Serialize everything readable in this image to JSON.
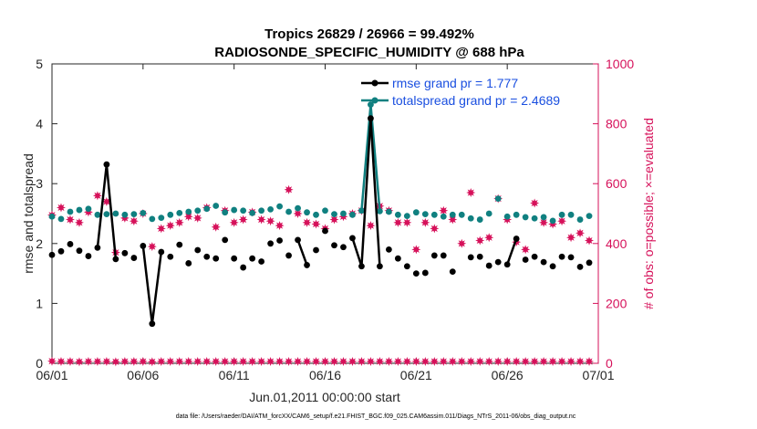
{
  "chart_data": {
    "type": "line",
    "title": "Tropics 26829 / 26966 = 99.492%",
    "subtitle": "RADIOSONDE_SPECIFIC_HUMIDITY @ 688 hPa",
    "xlabel": "Jun.01,2011 00:00:00 start",
    "ylabel": "rmse and totalspread",
    "y2label": "# of obs: o=possible; ×=evaluated",
    "footnote": "data file: /Users/raeder/DAI/ATM_forcXX/CAM6_setup/f.e21.FHIST_BGC.f09_025.CAM6assim.011/Diags_NTrS_2011-06/obs_diag_output.nc",
    "xlim": [
      0,
      30
    ],
    "ylim": [
      0,
      5
    ],
    "y2lim": [
      0,
      1000
    ],
    "x_ticks": [
      0,
      5,
      10,
      15,
      20,
      25,
      30
    ],
    "x_tick_labels": [
      "06/01",
      "06/06",
      "06/11",
      "06/16",
      "06/21",
      "06/26",
      "07/01"
    ],
    "y_ticks": [
      "0",
      "1",
      "2",
      "3",
      "4",
      "5"
    ],
    "y2_ticks": [
      "0",
      "200",
      "400",
      "600",
      "800",
      "1000"
    ],
    "x": [
      0,
      0.5,
      1,
      1.5,
      2,
      2.5,
      3,
      3.5,
      4,
      4.5,
      5,
      5.5,
      6,
      6.5,
      7,
      7.5,
      8,
      8.5,
      9,
      9.5,
      10,
      10.5,
      11,
      11.5,
      12,
      12.5,
      13,
      13.5,
      14,
      14.5,
      15,
      15.5,
      16,
      16.5,
      17,
      17.5,
      18,
      18.5,
      19,
      19.5,
      20,
      20.5,
      21,
      21.5,
      22,
      22.5,
      23,
      23.5,
      24,
      24.5,
      25,
      25.5,
      26,
      26.5,
      27,
      27.5,
      28,
      28.5,
      29,
      29.5
    ],
    "series": [
      {
        "name": "rmse grand pr = 1.777",
        "legend": "rmse grand pr = 1.777",
        "color": "#000000",
        "axis": "left",
        "values": [
          1.81,
          1.87,
          1.99,
          1.88,
          1.79,
          1.93,
          3.32,
          1.74,
          1.84,
          1.76,
          1.96,
          0.66,
          1.86,
          1.78,
          1.98,
          1.67,
          1.89,
          1.78,
          1.75,
          2.06,
          1.75,
          1.6,
          1.75,
          1.7,
          2.0,
          2.05,
          1.8,
          2.06,
          1.64,
          1.89,
          2.21,
          1.97,
          1.94,
          2.09,
          1.62,
          4.09,
          1.62,
          1.9,
          1.75,
          1.62,
          1.5,
          1.51,
          1.8,
          1.8,
          1.53,
          null,
          1.77,
          1.78,
          1.63,
          1.69,
          1.65,
          2.08,
          1.73,
          1.78,
          1.69,
          1.62,
          1.78,
          1.77,
          1.61,
          1.68
        ]
      },
      {
        "name": "totalspread grand pr = 2.4689",
        "legend": "totalspread grand pr = 2.4689",
        "color": "#108080",
        "axis": "left",
        "values": [
          2.45,
          2.41,
          2.53,
          2.56,
          2.58,
          2.48,
          2.49,
          2.5,
          2.48,
          2.49,
          2.51,
          2.41,
          2.43,
          2.48,
          2.51,
          2.53,
          2.55,
          2.58,
          2.63,
          2.52,
          2.56,
          2.55,
          2.51,
          2.55,
          2.57,
          2.62,
          2.53,
          2.59,
          2.52,
          2.48,
          2.55,
          2.49,
          2.5,
          2.48,
          2.55,
          4.32,
          2.54,
          2.53,
          2.48,
          2.46,
          2.52,
          2.49,
          2.48,
          2.45,
          2.48,
          2.48,
          2.42,
          2.4,
          2.5,
          2.75,
          2.45,
          2.48,
          2.44,
          2.42,
          2.44,
          2.38,
          2.48,
          2.48,
          2.4,
          2.46
        ]
      },
      {
        "name": "obs possible",
        "color": "#d6115a",
        "axis": "right",
        "values": [
          495,
          520,
          480,
          470,
          505,
          560,
          540,
          370,
          485,
          475,
          500,
          390,
          450,
          460,
          470,
          490,
          485,
          520,
          455,
          510,
          470,
          480,
          505,
          480,
          475,
          460,
          580,
          500,
          470,
          465,
          450,
          480,
          490,
          500,
          510,
          460,
          525,
          510,
          470,
          470,
          380,
          470,
          450,
          510,
          480,
          400,
          570,
          410,
          420,
          550,
          480,
          405,
          380,
          535,
          470,
          465,
          475,
          420,
          435,
          410
        ]
      },
      {
        "name": "obs evaluated",
        "color": "#d6115a",
        "axis": "right",
        "values": [
          7,
          6,
          6,
          5,
          6,
          6,
          6,
          5,
          6,
          6,
          6,
          5,
          6,
          6,
          6,
          6,
          6,
          6,
          6,
          6,
          6,
          6,
          6,
          6,
          6,
          6,
          6,
          6,
          6,
          6,
          6,
          6,
          6,
          6,
          6,
          6,
          6,
          6,
          6,
          6,
          6,
          6,
          6,
          6,
          6,
          6,
          6,
          6,
          6,
          6,
          6,
          6,
          6,
          6,
          6,
          6,
          6,
          6,
          6,
          6
        ]
      }
    ],
    "legend_position": "top-right",
    "grid": false
  }
}
